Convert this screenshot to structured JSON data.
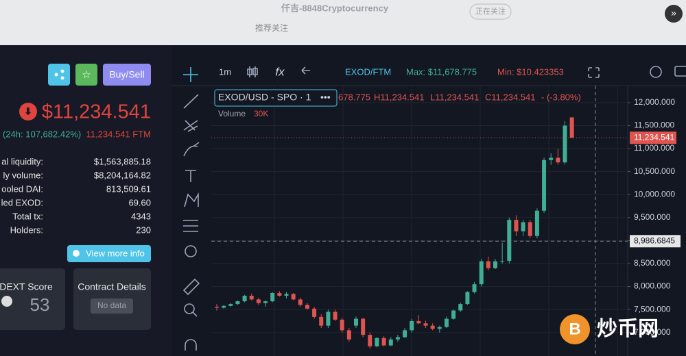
{
  "top_bar": {
    "title": "仟吉-8848Cryptocurrency",
    "subtitle": "推荐关注",
    "follow": "正在关注"
  },
  "token_panel": {
    "buy_sell": "Buy/Sell",
    "price": "$11,234.541",
    "change": "(24h: 107,682.42%)",
    "ftm_price": "11,234.541 FTM",
    "stats": [
      [
        "al liquidity:",
        "$1,563,885.18"
      ],
      [
        "ly volume:",
        "$8,204,164.82"
      ],
      [
        "ooled DAI:",
        "813,509.61"
      ],
      [
        "led EXOD:",
        "69.60"
      ],
      [
        "Total tx:",
        "4343"
      ],
      [
        "Holders:",
        "230"
      ]
    ],
    "view_more": "View more info",
    "dext_score": "DEXT Score",
    "score": "53",
    "contract_details": "Contract Details",
    "no_data": "No data"
  },
  "toolbar": {
    "interval": "1m",
    "pair": "EXOD/FTM",
    "max": "Max: $11,678.775",
    "min": "Min: $10.423353"
  },
  "legend": {
    "symbol": "EXOD/USD - SPO · 1",
    "ohlc": [
      "678.775",
      "H11,234.541",
      "L11,234.541",
      "C11,234.541",
      "- (-3.80%)"
    ],
    "volume": "Volume",
    "volume_value": "30K"
  },
  "watermark": "炒币网",
  "chart": {
    "type": "candlestick",
    "ylim": [
      6490,
      12370
    ],
    "yticks": [
      {
        "value": 12000,
        "label": "12,000.000"
      },
      {
        "value": 11500,
        "label": "11,500.000"
      },
      {
        "value": 11000,
        "label": "11,000.000"
      },
      {
        "value": 10500,
        "label": "10,500.000"
      },
      {
        "value": 10000,
        "label": "10,000.000"
      },
      {
        "value": 9500,
        "label": "9,500.000"
      },
      {
        "value": 9000,
        "label": "9,000.000"
      },
      {
        "value": 8500,
        "label": "8,500.000"
      },
      {
        "value": 8000,
        "label": "8,000.000"
      },
      {
        "value": 7500,
        "label": "7,500.000"
      },
      {
        "value": 7000,
        "label": "7,000.000"
      }
    ],
    "last_price": {
      "value": 11234.541,
      "label": "11,234.541"
    },
    "crosshair": {
      "value": 8986.6845,
      "label": "8,986.6845"
    },
    "up_color": "#3fae93",
    "down_color": "#e0544f",
    "candles": [
      {
        "o": 7560,
        "h": 7620,
        "l": 7480,
        "c": 7540
      },
      {
        "o": 7540,
        "h": 7600,
        "l": 7520,
        "c": 7580
      },
      {
        "o": 7580,
        "h": 7640,
        "l": 7560,
        "c": 7620
      },
      {
        "o": 7620,
        "h": 7700,
        "l": 7600,
        "c": 7680
      },
      {
        "o": 7680,
        "h": 7820,
        "l": 7660,
        "c": 7800
      },
      {
        "o": 7800,
        "h": 7850,
        "l": 7700,
        "c": 7720
      },
      {
        "o": 7720,
        "h": 7760,
        "l": 7600,
        "c": 7640
      },
      {
        "o": 7640,
        "h": 7700,
        "l": 7560,
        "c": 7680
      },
      {
        "o": 7680,
        "h": 7880,
        "l": 7660,
        "c": 7860
      },
      {
        "o": 7860,
        "h": 7900,
        "l": 7780,
        "c": 7800
      },
      {
        "o": 7800,
        "h": 7880,
        "l": 7740,
        "c": 7840
      },
      {
        "o": 7840,
        "h": 7860,
        "l": 7700,
        "c": 7720
      },
      {
        "o": 7720,
        "h": 7760,
        "l": 7560,
        "c": 7600
      },
      {
        "o": 7600,
        "h": 7640,
        "l": 7500,
        "c": 7520
      },
      {
        "o": 7520,
        "h": 7560,
        "l": 7300,
        "c": 7340
      },
      {
        "o": 7340,
        "h": 7400,
        "l": 7100,
        "c": 7150
      },
      {
        "o": 7150,
        "h": 7500,
        "l": 7100,
        "c": 7450
      },
      {
        "o": 7450,
        "h": 7500,
        "l": 7250,
        "c": 7280
      },
      {
        "o": 7280,
        "h": 7320,
        "l": 7000,
        "c": 7050
      },
      {
        "o": 7050,
        "h": 7100,
        "l": 6800,
        "c": 6850
      },
      {
        "o": 7150,
        "h": 7350,
        "l": 7100,
        "c": 7300
      },
      {
        "o": 7300,
        "h": 7320,
        "l": 6900,
        "c": 6950
      },
      {
        "o": 6950,
        "h": 7000,
        "l": 6650,
        "c": 6700
      },
      {
        "o": 6700,
        "h": 6900,
        "l": 6680,
        "c": 6880
      },
      {
        "o": 6880,
        "h": 6920,
        "l": 6700,
        "c": 6720
      },
      {
        "o": 6720,
        "h": 6900,
        "l": 6700,
        "c": 6850
      },
      {
        "o": 6850,
        "h": 6950,
        "l": 6800,
        "c": 6900
      },
      {
        "o": 6900,
        "h": 7100,
        "l": 6880,
        "c": 7050
      },
      {
        "o": 7050,
        "h": 7300,
        "l": 7000,
        "c": 7250
      },
      {
        "o": 7250,
        "h": 7380,
        "l": 7180,
        "c": 7200
      },
      {
        "o": 7200,
        "h": 7260,
        "l": 7100,
        "c": 7150
      },
      {
        "o": 7150,
        "h": 7200,
        "l": 7050,
        "c": 7080
      },
      {
        "o": 7080,
        "h": 7150,
        "l": 7000,
        "c": 7120
      },
      {
        "o": 7120,
        "h": 7350,
        "l": 7100,
        "c": 7300
      },
      {
        "o": 7300,
        "h": 7500,
        "l": 7280,
        "c": 7480
      },
      {
        "o": 7480,
        "h": 7650,
        "l": 7450,
        "c": 7620
      },
      {
        "o": 7620,
        "h": 7900,
        "l": 7600,
        "c": 7880
      },
      {
        "o": 7880,
        "h": 8100,
        "l": 7850,
        "c": 8050
      },
      {
        "o": 8050,
        "h": 8600,
        "l": 8000,
        "c": 8550
      },
      {
        "o": 8550,
        "h": 8650,
        "l": 8350,
        "c": 8400
      },
      {
        "o": 8400,
        "h": 8600,
        "l": 8380,
        "c": 8550
      },
      {
        "o": 8550,
        "h": 8950,
        "l": 8500,
        "c": 8560
      },
      {
        "o": 8560,
        "h": 9500,
        "l": 8500,
        "c": 9450
      },
      {
        "o": 9450,
        "h": 9550,
        "l": 9100,
        "c": 9200
      },
      {
        "o": 9200,
        "h": 9450,
        "l": 9100,
        "c": 9400
      },
      {
        "o": 9400,
        "h": 9450,
        "l": 9050,
        "c": 9100
      },
      {
        "o": 9100,
        "h": 9700,
        "l": 9050,
        "c": 9650
      },
      {
        "o": 9650,
        "h": 10800,
        "l": 9600,
        "c": 10750
      },
      {
        "o": 10750,
        "h": 10900,
        "l": 10650,
        "c": 10800
      },
      {
        "o": 10800,
        "h": 11000,
        "l": 10650,
        "c": 10700
      },
      {
        "o": 10700,
        "h": 11600,
        "l": 10650,
        "c": 11500
      },
      {
        "o": 11678.775,
        "h": 11678.775,
        "l": 11234.541,
        "c": 11234.541
      }
    ]
  }
}
